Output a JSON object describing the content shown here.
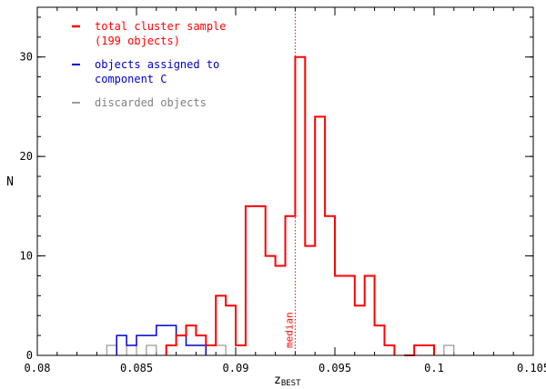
{
  "chart_data": {
    "type": "histogram",
    "xlabel_main": "z",
    "xlabel_sub": "BEST",
    "ylabel": "N",
    "xlim": [
      0.08,
      0.105
    ],
    "ylim": [
      0,
      35
    ],
    "xticks": [
      0.08,
      0.085,
      0.09,
      0.095,
      0.1,
      0.105
    ],
    "xtick_labels": [
      "0.08",
      "0.085",
      "0.09",
      "0.095",
      "0.1",
      "0.105"
    ],
    "yticks": [
      0,
      10,
      20,
      30
    ],
    "ytick_labels": [
      "0",
      "10",
      "20",
      "30"
    ],
    "bin_width": 0.0005,
    "median": 0.093,
    "median_label": "median",
    "median_color": "#ff0000",
    "legend_position": "top-left",
    "series": [
      {
        "name": "total cluster sample\n(199 objects)",
        "legend_lines": [
          "total cluster sample",
          "(199 objects)"
        ],
        "color": "#ff0000",
        "line_width": 2,
        "bins": [
          [
            0.0865,
            1
          ],
          [
            0.087,
            2
          ],
          [
            0.0875,
            3
          ],
          [
            0.088,
            2
          ],
          [
            0.0885,
            1
          ],
          [
            0.089,
            6
          ],
          [
            0.0895,
            5
          ],
          [
            0.09,
            1
          ],
          [
            0.0905,
            15
          ],
          [
            0.091,
            15
          ],
          [
            0.0915,
            10
          ],
          [
            0.092,
            9
          ],
          [
            0.0925,
            14
          ],
          [
            0.093,
            30
          ],
          [
            0.0935,
            11
          ],
          [
            0.094,
            24
          ],
          [
            0.0945,
            14
          ],
          [
            0.095,
            8
          ],
          [
            0.0955,
            8
          ],
          [
            0.096,
            5
          ],
          [
            0.0965,
            8
          ],
          [
            0.097,
            3
          ],
          [
            0.0975,
            1
          ],
          [
            0.0985,
            0
          ],
          [
            0.099,
            1
          ],
          [
            0.0995,
            1
          ]
        ]
      },
      {
        "name": "objects assigned to\ncomponent C",
        "legend_lines": [
          "objects assigned to",
          "component C"
        ],
        "color": "#0000cc",
        "line_width": 1.5,
        "bins": [
          [
            0.084,
            2
          ],
          [
            0.0845,
            1
          ],
          [
            0.085,
            2
          ],
          [
            0.0855,
            2
          ],
          [
            0.086,
            3
          ],
          [
            0.0865,
            3
          ],
          [
            0.087,
            2
          ],
          [
            0.0875,
            1
          ],
          [
            0.088,
            1
          ]
        ]
      },
      {
        "name": "discarded objects",
        "legend_lines": [
          "discarded objects"
        ],
        "color": "#808080",
        "line_width": 1,
        "bins": [
          [
            0.0835,
            1
          ],
          [
            0.0845,
            1
          ],
          [
            0.0855,
            1
          ],
          [
            0.0885,
            1
          ],
          [
            0.089,
            1
          ],
          [
            0.1005,
            1
          ]
        ]
      }
    ]
  }
}
